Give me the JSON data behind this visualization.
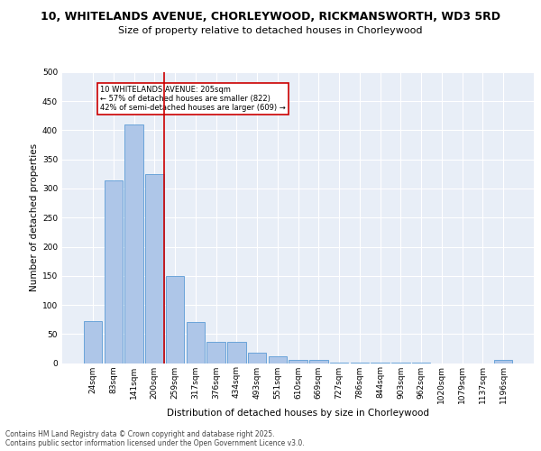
{
  "title_line1": "10, WHITELANDS AVENUE, CHORLEYWOOD, RICKMANSWORTH, WD3 5RD",
  "title_line2": "Size of property relative to detached houses in Chorleywood",
  "xlabel": "Distribution of detached houses by size in Chorleywood",
  "ylabel": "Number of detached properties",
  "categories": [
    "24sqm",
    "83sqm",
    "141sqm",
    "200sqm",
    "259sqm",
    "317sqm",
    "376sqm",
    "434sqm",
    "493sqm",
    "551sqm",
    "610sqm",
    "669sqm",
    "727sqm",
    "786sqm",
    "844sqm",
    "903sqm",
    "962sqm",
    "1020sqm",
    "1079sqm",
    "1137sqm",
    "1196sqm"
  ],
  "values": [
    72,
    314,
    410,
    325,
    150,
    70,
    37,
    37,
    18,
    12,
    6,
    6,
    1,
    1,
    1,
    1,
    1,
    0,
    0,
    0,
    5
  ],
  "bar_color": "#aec6e8",
  "bar_edge_color": "#5b9bd5",
  "annotation_title": "10 WHITELANDS AVENUE: 205sqm",
  "annotation_line2": "← 57% of detached houses are smaller (822)",
  "annotation_line3": "42% of semi-detached houses are larger (609) →",
  "redline_color": "#cc0000",
  "annotation_box_color": "#ffffff",
  "annotation_box_edge": "#cc0000",
  "footer": "Contains HM Land Registry data © Crown copyright and database right 2025.\nContains public sector information licensed under the Open Government Licence v3.0.",
  "ylim": [
    0,
    500
  ],
  "yticks": [
    0,
    50,
    100,
    150,
    200,
    250,
    300,
    350,
    400,
    450,
    500
  ],
  "plot_background": "#e8eef7",
  "grid_color": "#ffffff",
  "title_fontsize": 9,
  "subtitle_fontsize": 8,
  "axis_label_fontsize": 7.5,
  "tick_fontsize": 6.5,
  "footer_fontsize": 5.5
}
